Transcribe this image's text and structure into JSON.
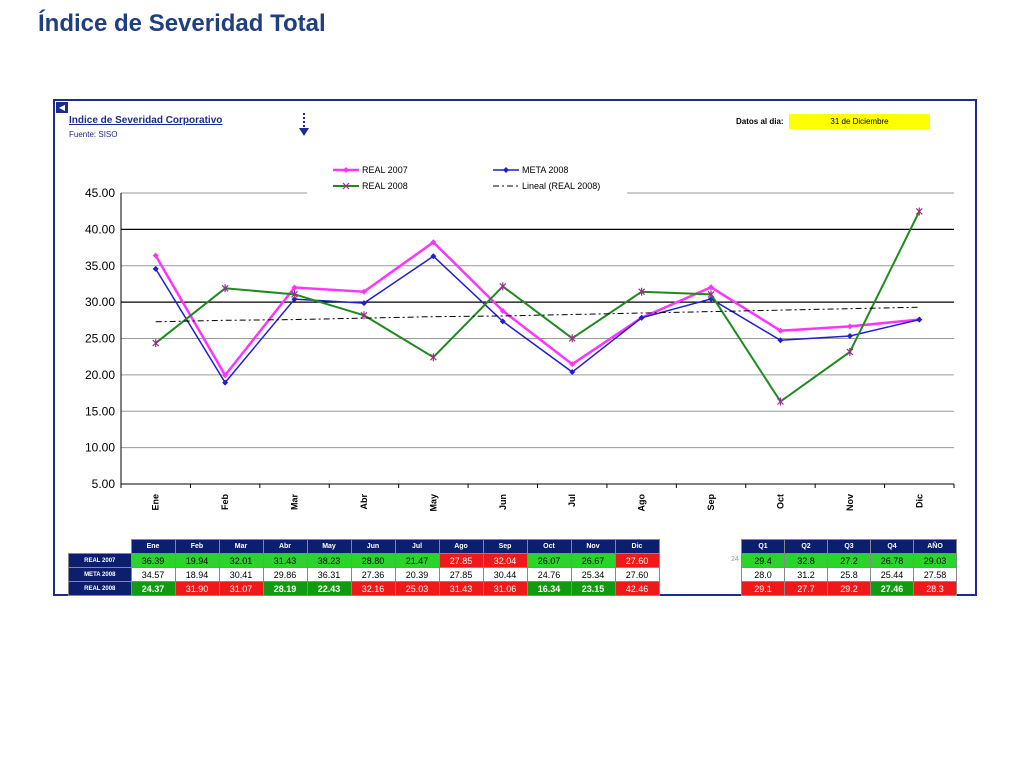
{
  "page": {
    "title": "Índice de Severidad Total"
  },
  "panel": {
    "chart_title": "Indice de Severidad Corporativo",
    "source": "Fuente: SISO",
    "date_label": "Datos al dia:",
    "date_value": "31 de Diciembre",
    "stray_label": "24"
  },
  "legend": {
    "real2007": "REAL 2007",
    "meta2008": "META 2008",
    "real2008": "REAL 2008",
    "linear": "Lineal (REAL 2008)"
  },
  "colors": {
    "real2007": "#ff33ff",
    "meta2008": "#1f1fcc",
    "real2008": "#1f8a1f",
    "linear": "#000000",
    "header": "#0b1f6e",
    "good": "#2bd42b",
    "bad": "#f01818",
    "good_dark": "#139a13",
    "highlight": "#ffff00"
  },
  "icons": {
    "back": "back-arrow-icon",
    "down": "dotted-down-arrow-icon"
  },
  "chart_data": {
    "type": "line",
    "x": [
      "Ene",
      "Feb",
      "Mar",
      "Abr",
      "May",
      "Jun",
      "Jul",
      "Ago",
      "Sep",
      "Oct",
      "Nov",
      "Dic"
    ],
    "ylim": [
      5,
      45
    ],
    "yticks": [
      "45.00",
      "40.00",
      "35.00",
      "30.00",
      "25.00",
      "20.00",
      "15.00",
      "10.00",
      "5.00"
    ],
    "legend_position": "top",
    "series": [
      {
        "name": "REAL 2007",
        "values": [
          36.39,
          19.94,
          32.01,
          31.43,
          38.23,
          28.8,
          21.47,
          27.85,
          32.04,
          26.07,
          26.67,
          27.6
        ]
      },
      {
        "name": "META 2008",
        "values": [
          34.57,
          18.94,
          30.41,
          29.86,
          36.31,
          27.36,
          20.39,
          27.85,
          30.44,
          24.76,
          25.34,
          27.6
        ]
      },
      {
        "name": "REAL 2008",
        "values": [
          24.37,
          31.9,
          31.07,
          28.19,
          22.43,
          32.16,
          25.03,
          31.43,
          31.06,
          16.34,
          23.15,
          42.46
        ]
      },
      {
        "name": "Lineal (REAL 2008)",
        "values": [
          27.3,
          27.5,
          27.6,
          27.8,
          28.0,
          28.1,
          28.3,
          28.5,
          28.7,
          28.9,
          29.1,
          29.3
        ]
      }
    ]
  },
  "table": {
    "months": [
      "Ene",
      "Feb",
      "Mar",
      "Abr",
      "May",
      "Jun",
      "Jul",
      "Ago",
      "Sep",
      "Oct",
      "Nov",
      "Dic"
    ],
    "quarters": [
      "Q1",
      "Q2",
      "Q3",
      "Q4",
      "AÑO"
    ],
    "rows": [
      {
        "label": "REAL 2007",
        "values": [
          "36.39",
          "19.94",
          "32.01",
          "31.43",
          "38.23",
          "28.80",
          "21.47",
          "27.85",
          "32.04",
          "26.07",
          "26.67",
          "27.60"
        ],
        "styles": [
          "green",
          "green",
          "green",
          "green",
          "green",
          "green",
          "green",
          "red",
          "red",
          "green",
          "green",
          "red"
        ],
        "q_values": [
          "29.4",
          "32.8",
          "27.2",
          "26.78",
          "29.03"
        ],
        "q_styles": [
          "green",
          "green",
          "green",
          "green",
          "green"
        ]
      },
      {
        "label": "META 2008",
        "values": [
          "34.57",
          "18.94",
          "30.41",
          "29.86",
          "36.31",
          "27.36",
          "20.39",
          "27.85",
          "30.44",
          "24.76",
          "25.34",
          "27.60"
        ],
        "styles": [
          "white",
          "white",
          "white",
          "white",
          "white",
          "white",
          "white",
          "white",
          "white",
          "white",
          "white",
          "white"
        ],
        "q_values": [
          "28.0",
          "31.2",
          "25.8",
          "25.44",
          "27.58"
        ],
        "q_styles": [
          "white",
          "white",
          "white",
          "white",
          "white"
        ]
      },
      {
        "label": "REAL 2008",
        "values": [
          "24.37",
          "31.90",
          "31.07",
          "28.19",
          "22.43",
          "32.16",
          "25.03",
          "31.43",
          "31.06",
          "16.34",
          "23.15",
          "42.46"
        ],
        "styles": [
          "dgreen",
          "red",
          "red",
          "dgreen",
          "dgreen",
          "red",
          "red",
          "red",
          "red",
          "dgreen",
          "dgreen",
          "red"
        ],
        "q_values": [
          "29.1",
          "27.7",
          "29.2",
          "27.46",
          "28.3"
        ],
        "q_styles": [
          "red",
          "red",
          "red",
          "dgreen",
          "red"
        ]
      }
    ]
  }
}
